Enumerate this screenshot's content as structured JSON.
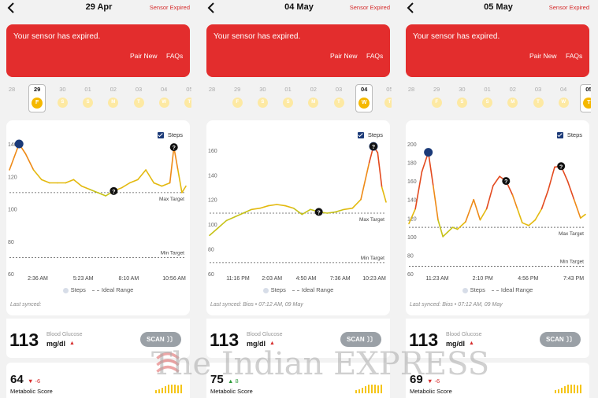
{
  "watermark": {
    "text": "The Indian EXPRESS"
  },
  "colors": {
    "red": "#e32d2d",
    "yellow": "#f5b800",
    "marker": "#1b3a78",
    "gray": "#9aa0a6"
  },
  "panels": [
    {
      "date": "29 Apr",
      "sensor_status": "Sensor Expired",
      "banner": {
        "message": "Your sensor has expired.",
        "pair": "Pair New",
        "faqs": "FAQs"
      },
      "days": [
        {
          "num": "28",
          "letter": ""
        },
        {
          "num": "29",
          "letter": "F",
          "selected": true
        },
        {
          "num": "30",
          "letter": "S"
        },
        {
          "num": "01",
          "letter": "S"
        },
        {
          "num": "02",
          "letter": "M"
        },
        {
          "num": "03",
          "letter": "T"
        },
        {
          "num": "04",
          "letter": "W"
        },
        {
          "num": "05",
          "letter": "T"
        }
      ],
      "legend_steps": "Steps",
      "y_ticks": [
        "140",
        "120",
        "100",
        "80",
        "60"
      ],
      "x_ticks": [
        "2:36 AM",
        "5:23 AM",
        "8:10 AM",
        "10:56 AM"
      ],
      "max_target": "Max Target",
      "min_target": "Min Target",
      "legend_steps_bottom": "Steps",
      "legend_ideal": "Ideal Range",
      "last_synced": "Last synced:",
      "glucose": {
        "value": "113",
        "label": "Blood Glucose",
        "unit": "mg/dl",
        "trend": "▲"
      },
      "scan_label": "SCAN",
      "score": {
        "value": "64",
        "delta": "▼ -6",
        "label": "Metabolic Score",
        "delta_color": "#d62b2b"
      }
    },
    {
      "date": "04 May",
      "sensor_status": "Sensor Expired",
      "banner": {
        "message": "Your sensor has expired.",
        "pair": "Pair New",
        "faqs": "FAQs"
      },
      "days": [
        {
          "num": "28",
          "letter": ""
        },
        {
          "num": "29",
          "letter": "F"
        },
        {
          "num": "30",
          "letter": "S"
        },
        {
          "num": "01",
          "letter": "S"
        },
        {
          "num": "02",
          "letter": "M"
        },
        {
          "num": "03",
          "letter": "T"
        },
        {
          "num": "04",
          "letter": "W",
          "selected": true
        },
        {
          "num": "05",
          "letter": "T"
        }
      ],
      "legend_steps": "Steps",
      "y_ticks": [
        "160",
        "140",
        "120",
        "100",
        "80",
        "60"
      ],
      "x_ticks": [
        "11:16 PM",
        "2:03 AM",
        "4:50 AM",
        "7:36 AM",
        "10:23 AM"
      ],
      "max_target": "Max Target",
      "min_target": "Min Target",
      "legend_steps_bottom": "Steps",
      "legend_ideal": "Ideal Range",
      "last_synced": "Last synced: Bios • 07:12 AM, 09 May",
      "glucose": {
        "value": "113",
        "label": "Blood Glucose",
        "unit": "mg/dl",
        "trend": "▲"
      },
      "scan_label": "SCAN",
      "score": {
        "value": "75",
        "delta": "▲ 8",
        "label": "Metabolic Score",
        "delta_color": "#2e9b3a"
      }
    },
    {
      "date": "05 May",
      "sensor_status": "Sensor Expired",
      "banner": {
        "message": "Your sensor has expired.",
        "pair": "Pair New",
        "faqs": "FAQs"
      },
      "days": [
        {
          "num": "28",
          "letter": ""
        },
        {
          "num": "29",
          "letter": "F"
        },
        {
          "num": "30",
          "letter": "S"
        },
        {
          "num": "01",
          "letter": "S"
        },
        {
          "num": "02",
          "letter": "M"
        },
        {
          "num": "03",
          "letter": "T"
        },
        {
          "num": "04",
          "letter": "W"
        },
        {
          "num": "05",
          "letter": "T",
          "selected": true
        },
        {
          "num": "",
          "letter": "F"
        }
      ],
      "legend_steps": "Steps",
      "y_ticks": [
        "200",
        "180",
        "160",
        "140",
        "120",
        "100",
        "80",
        "60"
      ],
      "x_ticks": [
        "11:23 AM",
        "2:10 PM",
        "4:56 PM",
        "7:43 PM"
      ],
      "max_target": "Max Target",
      "min_target": "Min Target",
      "legend_steps_bottom": "Steps",
      "legend_ideal": "Ideal Range",
      "last_synced": "Last synced: Bios • 07:12 AM, 09 May",
      "glucose": {
        "value": "113",
        "label": "Blood Glucose",
        "unit": "mg/dl",
        "trend": "▲"
      },
      "scan_label": "SCAN",
      "score": {
        "value": "69",
        "delta": "▼ -6",
        "label": "Metabolic Score",
        "delta_color": "#d62b2b"
      }
    }
  ],
  "chart_data": [
    {
      "type": "line",
      "ylim": [
        60,
        140
      ],
      "max_target": 110,
      "min_target": 70,
      "x": [
        0,
        6,
        12,
        20,
        30,
        40,
        50,
        60,
        70,
        80,
        90,
        100,
        110,
        120,
        130,
        140,
        150,
        160,
        170,
        180,
        190,
        200,
        205,
        210,
        215,
        220
      ],
      "y": [
        124,
        132,
        140,
        134,
        124,
        118,
        116,
        116,
        116,
        118,
        114,
        112,
        110,
        108,
        111,
        113,
        116,
        118,
        124,
        116,
        114,
        116,
        138,
        124,
        110,
        114
      ]
    },
    {
      "type": "line",
      "ylim": [
        60,
        165
      ],
      "max_target": 109,
      "min_target": 69,
      "x": [
        0,
        10,
        20,
        30,
        40,
        50,
        60,
        70,
        80,
        90,
        100,
        110,
        120,
        130,
        140,
        150,
        160,
        170,
        180,
        190,
        195,
        200,
        205,
        210
      ],
      "y": [
        91,
        97,
        103,
        106,
        109,
        112,
        113,
        115,
        116,
        115,
        113,
        108,
        112,
        110,
        109,
        110,
        112,
        113,
        120,
        150,
        163,
        158,
        130,
        118
      ]
    },
    {
      "type": "line",
      "ylim": [
        60,
        200
      ],
      "max_target": 110,
      "min_target": 68,
      "x": [
        0,
        8,
        16,
        24,
        30,
        36,
        42,
        48,
        54,
        60,
        70,
        80,
        88,
        96,
        104,
        112,
        120,
        128,
        134,
        140,
        148,
        156,
        164,
        172,
        180,
        188,
        196,
        204,
        212,
        218
      ],
      "y": [
        114,
        130,
        170,
        191,
        155,
        118,
        100,
        105,
        110,
        108,
        116,
        140,
        118,
        130,
        155,
        165,
        160,
        145,
        130,
        115,
        112,
        118,
        130,
        150,
        175,
        176,
        160,
        140,
        120,
        124
      ]
    }
  ]
}
